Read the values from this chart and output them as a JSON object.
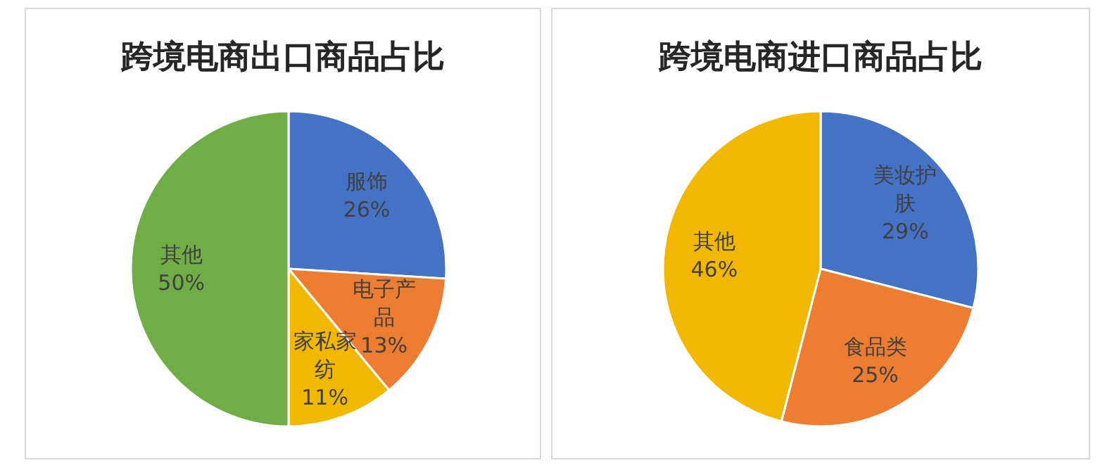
{
  "chart_data": [
    {
      "type": "pie",
      "title": "跨境电商出口商品占比",
      "categories": [
        "服饰",
        "电子产品",
        "家私家纺",
        "其他"
      ],
      "values": [
        26,
        13,
        11,
        50
      ],
      "value_labels": [
        "26%",
        "13%",
        "11%",
        "50%"
      ],
      "colors": [
        "#4472c4",
        "#ed7d31",
        "#f2b800",
        "#70ad47"
      ]
    },
    {
      "type": "pie",
      "title": "跨境电商进口商品占比",
      "categories": [
        "美妆护肤",
        "食品类",
        "其他"
      ],
      "values": [
        29,
        25,
        46
      ],
      "value_labels": [
        "29%",
        "25%",
        "46%"
      ],
      "colors": [
        "#4472c4",
        "#ed7d31",
        "#f2b800"
      ]
    }
  ]
}
